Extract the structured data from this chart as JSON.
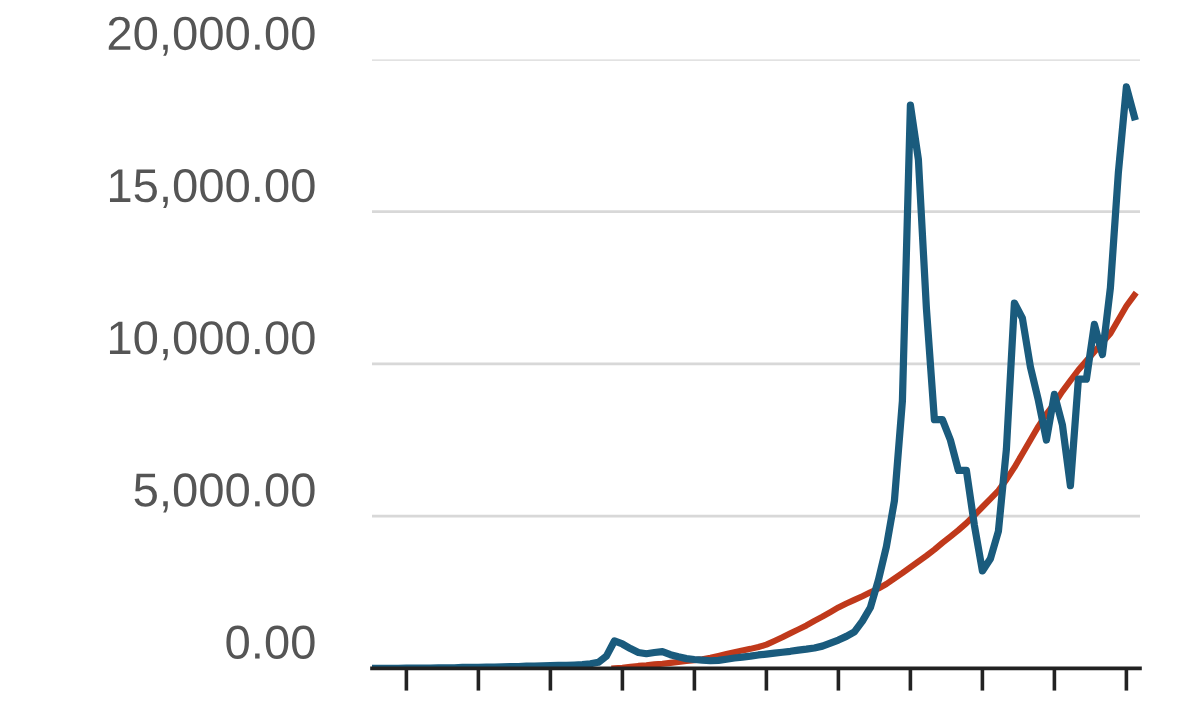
{
  "chart_data": {
    "type": "line",
    "categories": [
      null,
      null,
      null,
      null,
      null,
      null,
      null,
      null,
      null,
      null,
      null,
      null,
      null,
      null,
      null,
      null,
      null,
      null,
      null,
      null,
      null,
      null,
      null,
      null,
      null,
      null,
      null,
      null,
      null,
      null,
      null,
      null,
      null,
      null,
      null,
      null,
      null,
      null,
      null,
      null,
      null,
      null,
      null,
      null,
      null,
      null,
      null,
      null,
      null,
      null,
      null,
      null,
      null,
      null,
      null,
      null,
      null,
      null,
      null,
      null,
      null,
      null,
      null,
      null,
      null,
      null,
      null,
      null,
      null,
      null,
      null,
      null,
      null,
      null,
      null,
      null,
      null,
      null,
      null,
      null,
      null,
      null,
      null,
      null,
      null,
      null,
      null,
      null,
      null,
      null,
      null,
      null,
      null,
      null,
      null,
      null
    ],
    "series": [
      {
        "color": "#1a5b7d",
        "values": [
          0,
          0,
          0,
          0,
          10,
          10,
          10,
          10,
          20,
          20,
          20,
          30,
          30,
          30,
          40,
          40,
          50,
          60,
          60,
          70,
          70,
          80,
          90,
          100,
          100,
          110,
          120,
          150,
          200,
          400,
          900,
          800,
          650,
          520,
          480,
          520,
          550,
          450,
          380,
          320,
          290,
          270,
          250,
          260,
          300,
          340,
          370,
          400,
          440,
          470,
          500,
          530,
          560,
          600,
          630,
          670,
          730,
          830,
          930,
          1050,
          1200,
          1550,
          2000,
          2900,
          4000,
          5500,
          8780,
          18500,
          16710,
          11830,
          8170,
          8170,
          7500,
          6500,
          6500,
          4700,
          3200,
          3600,
          4500,
          7200,
          12000,
          11500,
          9900,
          8800,
          7500,
          9000,
          8000,
          6000,
          9500,
          9500,
          11300,
          10310,
          12500,
          16300,
          19100,
          18120
        ]
      },
      {
        "color": "#c0391b",
        "values": [
          null,
          null,
          null,
          null,
          null,
          null,
          null,
          null,
          null,
          null,
          null,
          null,
          null,
          null,
          null,
          null,
          null,
          null,
          null,
          null,
          null,
          null,
          null,
          null,
          null,
          null,
          null,
          null,
          null,
          null,
          0,
          20,
          50,
          80,
          100,
          130,
          150,
          180,
          210,
          240,
          270,
          300,
          350,
          410,
          470,
          530,
          590,
          640,
          700,
          780,
          900,
          1020,
          1150,
          1280,
          1410,
          1560,
          1700,
          1850,
          2000,
          2130,
          2250,
          2370,
          2500,
          2620,
          2770,
          2950,
          3130,
          3320,
          3510,
          3700,
          3900,
          4120,
          4330,
          4540,
          4770,
          5030,
          5300,
          5570,
          5840,
          6200,
          6600,
          7050,
          7500,
          7950,
          8350,
          8700,
          9100,
          9450,
          9800,
          10100,
          10400,
          10700,
          11000,
          11450,
          11900,
          12260
        ]
      }
    ],
    "ylim": [
      0,
      20000
    ],
    "yticks": [
      {
        "value": 0,
        "label": "0.00"
      },
      {
        "value": 5000,
        "label": "5,000.00"
      },
      {
        "value": 10000,
        "label": "10,000.00"
      },
      {
        "value": 15000,
        "label": "15,000.00"
      },
      {
        "value": 20000,
        "label": "20,000.00"
      }
    ],
    "grid": "y",
    "tick_labels": "y",
    "marker": "none",
    "line_style": "solid"
  }
}
